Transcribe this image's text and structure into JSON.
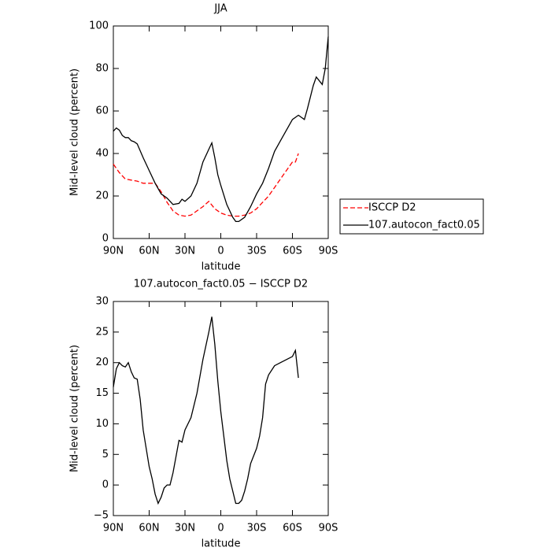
{
  "chart_data": [
    {
      "type": "line",
      "title": "JJA",
      "x_label": "latitude",
      "y_label": "Mid-level cloud (percent)",
      "xlim": [
        90,
        -90
      ],
      "ylim": [
        0,
        100
      ],
      "xticks": [
        {
          "value": 90,
          "label": "90N"
        },
        {
          "value": 60,
          "label": "60N"
        },
        {
          "value": 30,
          "label": "30N"
        },
        0,
        {
          "value": -30,
          "label": "30S"
        },
        {
          "value": -60,
          "label": "60S"
        },
        {
          "value": -90,
          "label": "90S"
        }
      ],
      "yticks": [
        0,
        20,
        40,
        60,
        80,
        100
      ],
      "legend": "right",
      "series": [
        {
          "name": "ISCCP D2",
          "color": "#ff0000",
          "line_style": "dashed",
          "x": [
            90,
            85,
            80,
            75,
            70,
            65,
            60,
            55,
            50,
            45,
            40,
            35,
            30,
            25,
            20,
            15,
            10,
            5,
            0,
            -5,
            -10,
            -15,
            -20,
            -25,
            -30,
            -35,
            -40,
            -45,
            -50,
            -55,
            -60,
            -62.5,
            -65
          ],
          "values": [
            35,
            31,
            28,
            27.5,
            27,
            26,
            26,
            26,
            22,
            17,
            13,
            11,
            10.5,
            11,
            13,
            15,
            17.5,
            14,
            12,
            11,
            10.5,
            10.5,
            11,
            12,
            14,
            17,
            20,
            24,
            28,
            32,
            36,
            36,
            40
          ]
        },
        {
          "name": "107.autocon_fact0.05",
          "color": "#000000",
          "line_style": "solid",
          "x": [
            90,
            87.5,
            85,
            82.5,
            80,
            77.5,
            75,
            72.5,
            70,
            65,
            60,
            55,
            50,
            45,
            40,
            35,
            32.5,
            30,
            25,
            20,
            15,
            10,
            7.5,
            5,
            2.5,
            0,
            -5,
            -10,
            -12.5,
            -15,
            -20,
            -25,
            -30,
            -35,
            -40,
            -45,
            -50,
            -55,
            -60,
            -65,
            -70,
            -72.5,
            -77.5,
            -80,
            -85,
            -87.5,
            -90
          ],
          "values": [
            50.5,
            52,
            51,
            48.5,
            47.5,
            47.5,
            46,
            45.5,
            44.5,
            38,
            32,
            26,
            21,
            19,
            16,
            16.5,
            18.5,
            17.5,
            20,
            26,
            36,
            42,
            45,
            38,
            30,
            25,
            16,
            10,
            8,
            8,
            10,
            15,
            21,
            26,
            33,
            41,
            46,
            51,
            56,
            58,
            56,
            61,
            72,
            76,
            72.5,
            80,
            95
          ]
        }
      ]
    },
    {
      "type": "line",
      "title": "107.autocon_fact0.05 − ISCCP D2",
      "x_label": "latitude",
      "y_label": "Mid-level cloud (percent)",
      "xlim": [
        90,
        -90
      ],
      "ylim": [
        -5,
        30
      ],
      "xticks": [
        {
          "value": 90,
          "label": "90N"
        },
        {
          "value": 60,
          "label": "60N"
        },
        {
          "value": 30,
          "label": "30N"
        },
        0,
        {
          "value": -30,
          "label": "30S"
        },
        {
          "value": -60,
          "label": "60S"
        },
        {
          "value": -90,
          "label": "90S"
        }
      ],
      "yticks": [
        -5,
        0,
        5,
        10,
        15,
        20,
        25,
        30
      ],
      "series": [
        {
          "color": "#000000",
          "line_style": "solid",
          "x": [
            90,
            87.5,
            85,
            82.5,
            80,
            77.5,
            75,
            72.5,
            70,
            67.5,
            65,
            60,
            57.5,
            55,
            52.5,
            50,
            47.5,
            45,
            42.5,
            40,
            35,
            32.5,
            30,
            25,
            20,
            15,
            10,
            7.5,
            5,
            2.5,
            0,
            -2.5,
            -5,
            -7.5,
            -10,
            -12.5,
            -15,
            -17.5,
            -20,
            -22.5,
            -25,
            -30,
            -32.5,
            -35,
            -37.5,
            -40,
            -45,
            -50,
            -55,
            -60,
            -62.5,
            -65
          ],
          "values": [
            16,
            19,
            20,
            19.5,
            19.3,
            20,
            18.5,
            17.5,
            17.3,
            14,
            9,
            3,
            1,
            -1.5,
            -3,
            -2,
            -0.5,
            0,
            0,
            2,
            7.3,
            7,
            9,
            11,
            15,
            20.5,
            25,
            27.5,
            23,
            17,
            12,
            8,
            4,
            1,
            -1,
            -3,
            -3,
            -2.5,
            -1,
            1,
            3.5,
            6,
            8,
            11,
            16.5,
            18,
            19.5,
            20,
            20.5,
            21,
            22,
            17.5
          ]
        }
      ]
    }
  ]
}
